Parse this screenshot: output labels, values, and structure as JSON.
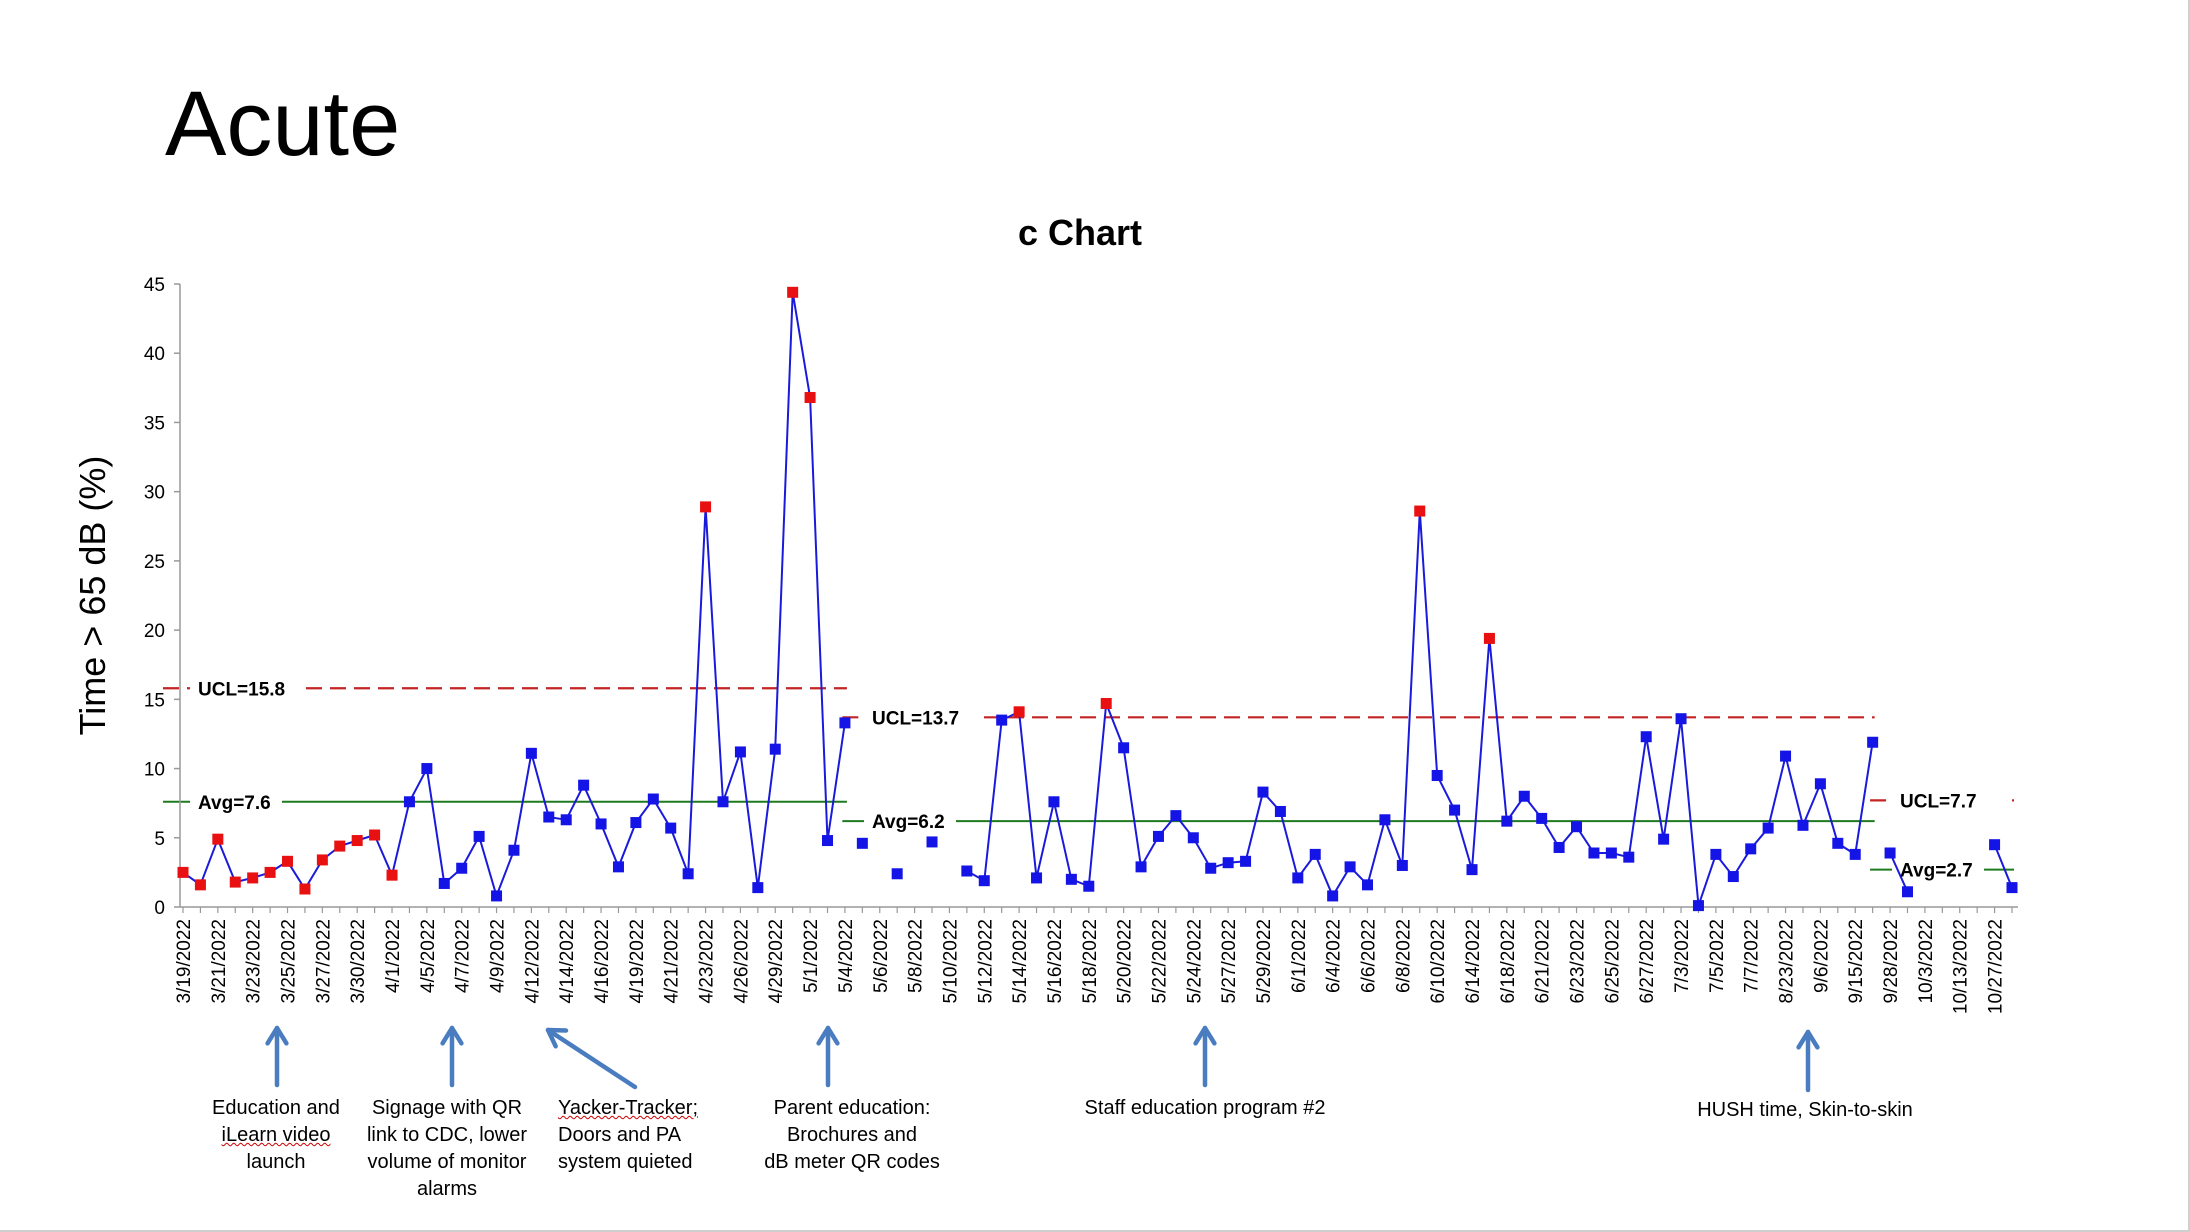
{
  "slide": {
    "title": "Acute"
  },
  "annotations": [
    {
      "lines": [
        "Education and",
        "iLearn video",
        "launch"
      ]
    },
    {
      "lines": [
        "Signage with QR",
        "link to CDC, lower",
        "volume of monitor",
        "alarms"
      ]
    },
    {
      "lines": [
        "Yacker-Tracker;",
        "Doors and PA",
        "system quieted"
      ]
    },
    {
      "lines": [
        "Parent education:",
        "Brochures and",
        "dB meter QR codes"
      ]
    },
    {
      "lines": [
        "Staff education program #2"
      ]
    },
    {
      "lines": [
        "HUSH time, Skin-to-skin"
      ]
    }
  ],
  "colors": {
    "in_control": "#1414e6",
    "out_of_control": "#e81010",
    "line": "#1a1adb",
    "ucl": "#c42424",
    "avg": "#1e7a1e",
    "arrow": "#4a7cc0"
  },
  "chart_data": {
    "type": "line",
    "title": "c Chart",
    "ylabel": "Time > 65 dB (%)",
    "xlabel": "",
    "ylim": [
      0,
      45
    ],
    "yticks": [
      0,
      5,
      10,
      15,
      20,
      25,
      30,
      35,
      40,
      45
    ],
    "grid": false,
    "x_tick_labels": [
      "3/19/2022",
      "3/21/2022",
      "3/23/2022",
      "3/25/2022",
      "3/27/2022",
      "3/30/2022",
      "4/1/2022",
      "4/5/2022",
      "4/7/2022",
      "4/9/2022",
      "4/12/2022",
      "4/14/2022",
      "4/16/2022",
      "4/19/2022",
      "4/21/2022",
      "4/23/2022",
      "4/26/2022",
      "4/29/2022",
      "5/1/2022",
      "5/4/2022",
      "5/6/2022",
      "5/8/2022",
      "5/10/2022",
      "5/12/2022",
      "5/14/2022",
      "5/16/2022",
      "5/18/2022",
      "5/20/2022",
      "5/22/2022",
      "5/24/2022",
      "5/27/2022",
      "5/29/2022",
      "6/1/2022",
      "6/4/2022",
      "6/6/2022",
      "6/8/2022",
      "6/10/2022",
      "6/14/2022",
      "6/18/2022",
      "6/21/2022",
      "6/23/2022",
      "6/25/2022",
      "6/27/2022",
      "7/3/2022",
      "7/5/2022",
      "7/7/2022",
      "8/23/2022",
      "9/6/2022",
      "9/15/2022",
      "9/28/2022",
      "10/3/2022",
      "10/13/2022",
      "10/27/2022"
    ],
    "phases": [
      {
        "ucl": 15.8,
        "avg": 7.6,
        "ucl_label": "UCL=15.8",
        "avg_label": "Avg=7.6",
        "points": [
          {
            "v": 2.5,
            "s": "out"
          },
          {
            "v": 1.6,
            "s": "out"
          },
          {
            "v": 4.9,
            "s": "out"
          },
          {
            "v": 1.8,
            "s": "out"
          },
          {
            "v": 2.1,
            "s": "out"
          },
          {
            "v": 2.5,
            "s": "out"
          },
          {
            "v": 3.3,
            "s": "out"
          },
          {
            "v": 1.3,
            "s": "out"
          },
          {
            "v": 3.4,
            "s": "out"
          },
          {
            "v": 4.4,
            "s": "out"
          },
          {
            "v": 4.8,
            "s": "out"
          },
          {
            "v": 5.2,
            "s": "out"
          },
          {
            "v": 2.3,
            "s": "out"
          },
          {
            "v": 7.6,
            "s": "in"
          },
          {
            "v": 10.0,
            "s": "in"
          },
          {
            "v": 1.7,
            "s": "in"
          },
          {
            "v": 2.8,
            "s": "in"
          },
          {
            "v": 5.1,
            "s": "in"
          },
          {
            "v": 0.8,
            "s": "in"
          },
          {
            "v": 4.1,
            "s": "in"
          },
          {
            "v": 11.1,
            "s": "in"
          },
          {
            "v": 6.5,
            "s": "in"
          },
          {
            "v": 6.3,
            "s": "in"
          },
          {
            "v": 8.8,
            "s": "in"
          },
          {
            "v": 6.0,
            "s": "in"
          },
          {
            "v": 2.9,
            "s": "in"
          },
          {
            "v": 6.1,
            "s": "in"
          },
          {
            "v": 7.8,
            "s": "in"
          },
          {
            "v": 5.7,
            "s": "in"
          },
          {
            "v": 2.4,
            "s": "in"
          },
          {
            "v": 28.9,
            "s": "out"
          },
          {
            "v": 7.6,
            "s": "in"
          },
          {
            "v": 11.2,
            "s": "in"
          },
          {
            "v": 1.4,
            "s": "in"
          },
          {
            "v": 11.4,
            "s": "in"
          },
          {
            "v": 44.4,
            "s": "out"
          },
          {
            "v": 36.8,
            "s": "out"
          },
          {
            "v": 4.8,
            "s": "in"
          },
          {
            "v": 13.3,
            "s": "in"
          }
        ]
      },
      {
        "ucl": 13.7,
        "avg": 6.2,
        "ucl_label": "UCL=13.7",
        "avg_label": "Avg=6.2",
        "points": [
          {
            "v": 4.6,
            "s": "in"
          },
          {
            "v": null,
            "s": "gap"
          },
          {
            "v": 2.4,
            "s": "in"
          },
          {
            "v": null,
            "s": "gap"
          },
          {
            "v": 4.7,
            "s": "in"
          },
          {
            "v": null,
            "s": "gap"
          },
          {
            "v": 2.6,
            "s": "in"
          },
          {
            "v": 1.9,
            "s": "in"
          },
          {
            "v": 13.5,
            "s": "in"
          },
          {
            "v": 14.1,
            "s": "out"
          },
          {
            "v": 2.1,
            "s": "in"
          },
          {
            "v": 7.6,
            "s": "in"
          },
          {
            "v": 2.0,
            "s": "in"
          },
          {
            "v": 1.5,
            "s": "in"
          },
          {
            "v": 14.7,
            "s": "out"
          },
          {
            "v": 11.5,
            "s": "in"
          },
          {
            "v": 2.9,
            "s": "in"
          },
          {
            "v": 5.1,
            "s": "in"
          },
          {
            "v": 6.6,
            "s": "in"
          },
          {
            "v": 5.0,
            "s": "in"
          },
          {
            "v": 2.8,
            "s": "in"
          },
          {
            "v": 3.2,
            "s": "in"
          },
          {
            "v": 3.3,
            "s": "in"
          },
          {
            "v": 8.3,
            "s": "in"
          },
          {
            "v": 6.9,
            "s": "in"
          },
          {
            "v": 2.1,
            "s": "in"
          },
          {
            "v": 3.8,
            "s": "in"
          },
          {
            "v": 0.8,
            "s": "in"
          },
          {
            "v": 2.9,
            "s": "in"
          },
          {
            "v": 1.6,
            "s": "in"
          },
          {
            "v": 6.3,
            "s": "in"
          },
          {
            "v": 3.0,
            "s": "in"
          },
          {
            "v": 28.6,
            "s": "out"
          },
          {
            "v": 9.5,
            "s": "in"
          },
          {
            "v": 7.0,
            "s": "in"
          },
          {
            "v": 2.7,
            "s": "in"
          },
          {
            "v": 19.4,
            "s": "out"
          },
          {
            "v": 6.2,
            "s": "in"
          },
          {
            "v": 8.0,
            "s": "in"
          },
          {
            "v": 6.4,
            "s": "in"
          },
          {
            "v": 4.3,
            "s": "in"
          },
          {
            "v": 5.8,
            "s": "in"
          },
          {
            "v": 3.9,
            "s": "in"
          },
          {
            "v": 3.9,
            "s": "in"
          },
          {
            "v": 3.6,
            "s": "in"
          },
          {
            "v": 12.3,
            "s": "in"
          },
          {
            "v": 4.9,
            "s": "in"
          },
          {
            "v": 13.6,
            "s": "in"
          },
          {
            "v": 0.1,
            "s": "in"
          },
          {
            "v": 3.8,
            "s": "in"
          },
          {
            "v": 2.2,
            "s": "in"
          },
          {
            "v": 4.2,
            "s": "in"
          },
          {
            "v": 5.7,
            "s": "in"
          },
          {
            "v": 10.9,
            "s": "in"
          },
          {
            "v": 5.9,
            "s": "in"
          },
          {
            "v": 8.9,
            "s": "in"
          },
          {
            "v": 4.6,
            "s": "in"
          },
          {
            "v": 3.8,
            "s": "in"
          },
          {
            "v": 11.9,
            "s": "in"
          }
        ]
      },
      {
        "ucl": 7.7,
        "avg": 2.7,
        "ucl_label": "UCL=7.7",
        "avg_label": "Avg=2.7",
        "points": [
          {
            "v": 3.9,
            "s": "in"
          },
          {
            "v": 1.1,
            "s": "in"
          },
          {
            "v": null,
            "s": "gap"
          },
          {
            "v": null,
            "s": "gap"
          },
          {
            "v": null,
            "s": "gap"
          },
          {
            "v": null,
            "s": "gap"
          },
          {
            "v": 4.5,
            "s": "in"
          },
          {
            "v": 1.4,
            "s": "in"
          }
        ]
      }
    ]
  }
}
